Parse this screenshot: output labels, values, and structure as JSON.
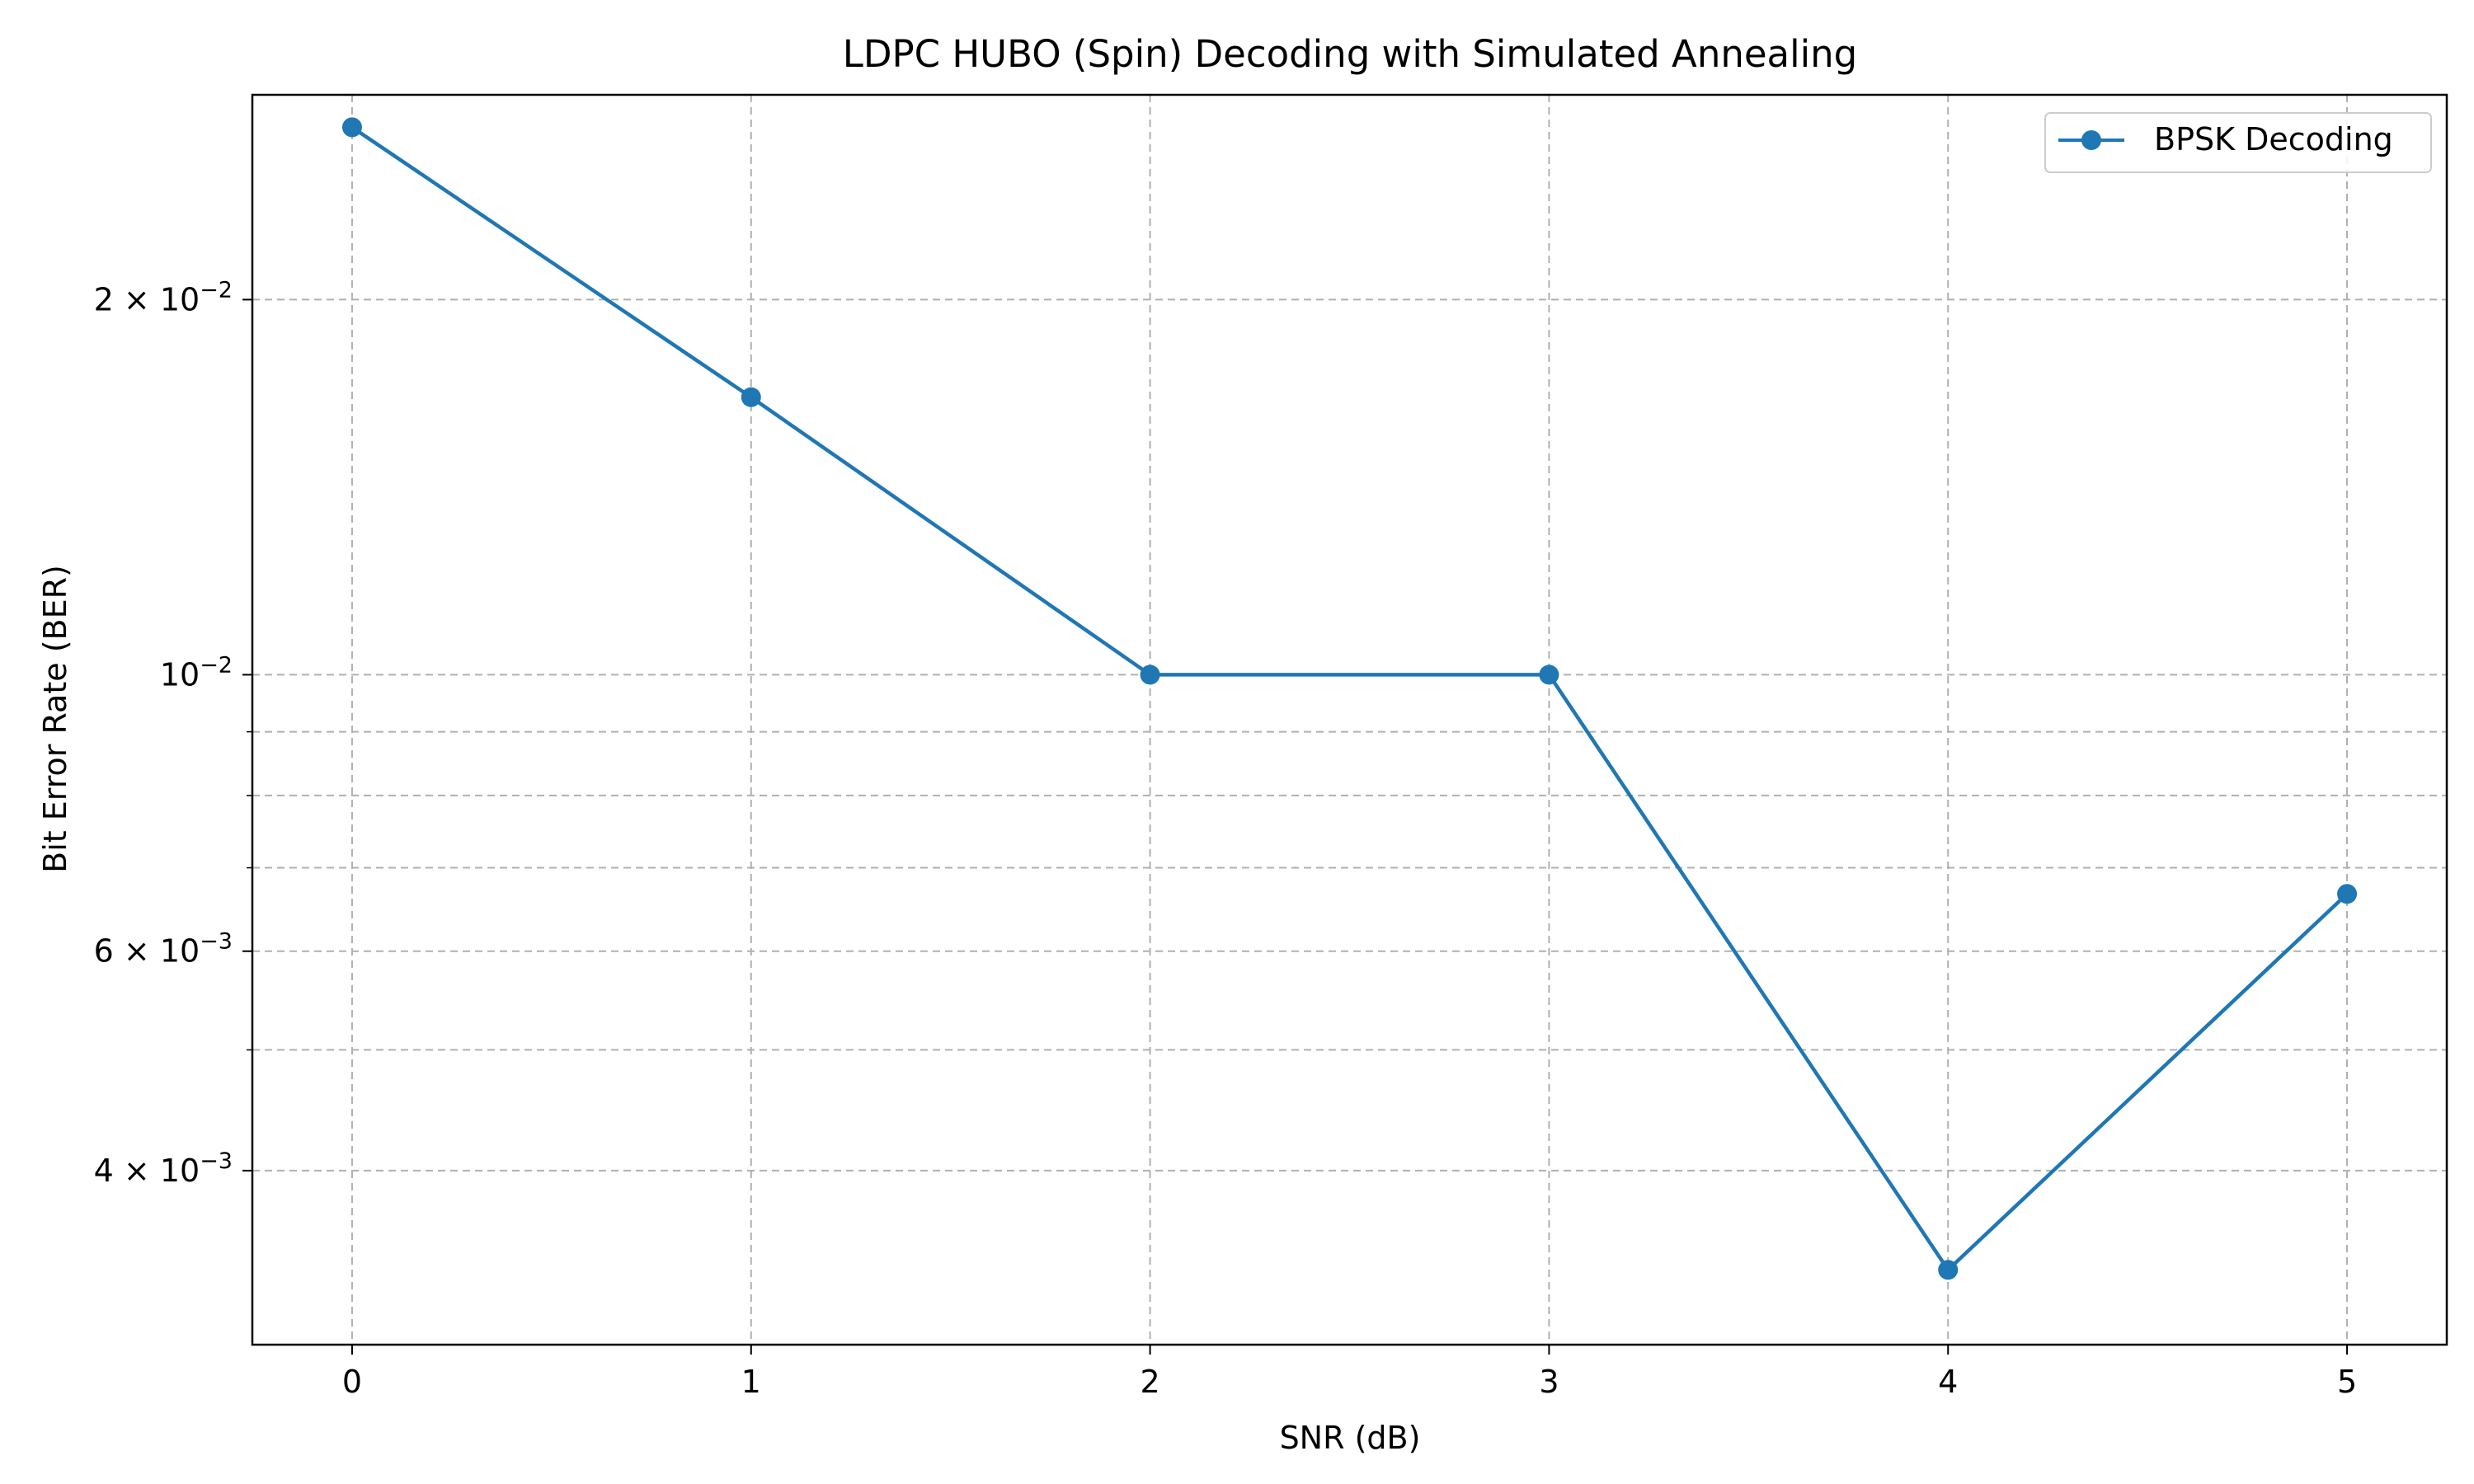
{
  "chart_data": {
    "type": "line",
    "title": "LDPC HUBO (Spin) Decoding with Simulated Annealing",
    "xlabel": "SNR (dB)",
    "ylabel": "Bit Error Rate (BER)",
    "x_ticks": [
      {
        "value": 0,
        "label": "0"
      },
      {
        "value": 1,
        "label": "1"
      },
      {
        "value": 2,
        "label": "2"
      },
      {
        "value": 3,
        "label": "3"
      },
      {
        "value": 4,
        "label": "4"
      },
      {
        "value": 5,
        "label": "5"
      }
    ],
    "y_scale": "log",
    "ylim": [
      0.0029,
      0.0292
    ],
    "xlim": [
      -0.25,
      5.25
    ],
    "y_major_ticks": [
      {
        "value": 0.02,
        "base": "2 × 10",
        "exp": "−2"
      },
      {
        "value": 0.01,
        "base": "10",
        "exp": "−2"
      },
      {
        "value": 0.006,
        "base": "6 × 10",
        "exp": "−3"
      },
      {
        "value": 0.004,
        "base": "4 × 10",
        "exp": "−3"
      }
    ],
    "y_minor_ticks": [
      0.009,
      0.008,
      0.007,
      0.005
    ],
    "grid": true,
    "legend_position": "top-right",
    "series": [
      {
        "name": "BPSK Decoding",
        "color": "#1f77b4",
        "marker": "circle",
        "x": [
          0,
          1,
          2,
          3,
          4,
          5
        ],
        "y": [
          0.0275,
          0.0167,
          0.01,
          0.01,
          0.00333,
          0.00667
        ]
      }
    ]
  }
}
